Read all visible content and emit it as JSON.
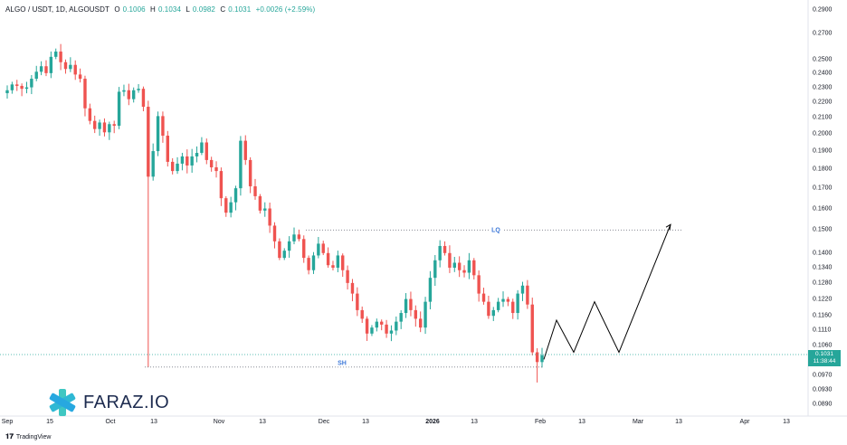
{
  "header": {
    "symbol": "ALGO / USDT, 1D, ALGOUSDT",
    "open_label": "O",
    "open": "0.1006",
    "high_label": "H",
    "high": "0.1034",
    "low_label": "L",
    "low": "0.0982",
    "close_label": "C",
    "close": "0.1031",
    "change": "+0.0026 (+2.59%)"
  },
  "last_price": {
    "value": "0.1031",
    "countdown": "11:38:44"
  },
  "annotations": {
    "lq_label": "LQ",
    "sh_label": "SH"
  },
  "watermark": {
    "text": "FARAZ.IO"
  },
  "footer": {
    "brand": "TradingView"
  },
  "colors": {
    "up": "#26a69a",
    "down": "#ef5350",
    "projection": "#000000",
    "dotted": "#787b86",
    "label": "#3d78d8"
  },
  "chart_data": {
    "type": "candlestick",
    "title": "ALGO / USDT, 1D, ALGOUSDT",
    "y_ticks": [
      "0.2900",
      "0.2700",
      "0.2500",
      "0.2400",
      "0.2300",
      "0.2200",
      "0.2100",
      "0.2000",
      "0.1900",
      "0.1800",
      "0.1700",
      "0.1600",
      "0.1500",
      "0.1400",
      "0.1340",
      "0.1280",
      "0.1220",
      "0.1160",
      "0.1110",
      "0.1060",
      "0.1010",
      "0.0970",
      "0.0930",
      "0.0890"
    ],
    "y_scale": "log",
    "x_ticks": [
      "Sep",
      "15",
      "Oct",
      "13",
      "Nov",
      "13",
      "Dec",
      "13",
      "2026",
      "13",
      "Feb",
      "13",
      "Mar",
      "13",
      "Apr",
      "13"
    ],
    "levels": [
      {
        "label": "LQ",
        "price": 0.15
      },
      {
        "label": "SH",
        "price": 0.0995
      }
    ],
    "projection_path": [
      0.1018,
      0.1145,
      0.104,
      0.121,
      0.104,
      0.1525
    ],
    "closes": [
      0.228,
      0.232,
      0.231,
      0.229,
      0.23,
      0.236,
      0.241,
      0.245,
      0.24,
      0.252,
      0.256,
      0.248,
      0.243,
      0.246,
      0.239,
      0.236,
      0.216,
      0.208,
      0.203,
      0.207,
      0.201,
      0.206,
      0.205,
      0.227,
      0.228,
      0.222,
      0.228,
      0.229,
      0.217,
      0.176,
      0.19,
      0.211,
      0.199,
      0.184,
      0.179,
      0.183,
      0.187,
      0.182,
      0.187,
      0.189,
      0.195,
      0.185,
      0.181,
      0.179,
      0.165,
      0.158,
      0.163,
      0.17,
      0.196,
      0.185,
      0.171,
      0.166,
      0.159,
      0.16,
      0.152,
      0.145,
      0.138,
      0.141,
      0.145,
      0.148,
      0.146,
      0.138,
      0.133,
      0.139,
      0.144,
      0.14,
      0.135,
      0.134,
      0.139,
      0.133,
      0.128,
      0.124,
      0.118,
      0.115,
      0.11,
      0.112,
      0.114,
      0.113,
      0.11,
      0.111,
      0.114,
      0.117,
      0.122,
      0.118,
      0.115,
      0.112,
      0.121,
      0.13,
      0.137,
      0.143,
      0.14,
      0.134,
      0.136,
      0.133,
      0.132,
      0.137,
      0.131,
      0.124,
      0.121,
      0.116,
      0.118,
      0.121,
      0.122,
      0.121,
      0.117,
      0.124,
      0.127,
      0.12,
      0.104,
      0.101,
      0.1031
    ]
  }
}
